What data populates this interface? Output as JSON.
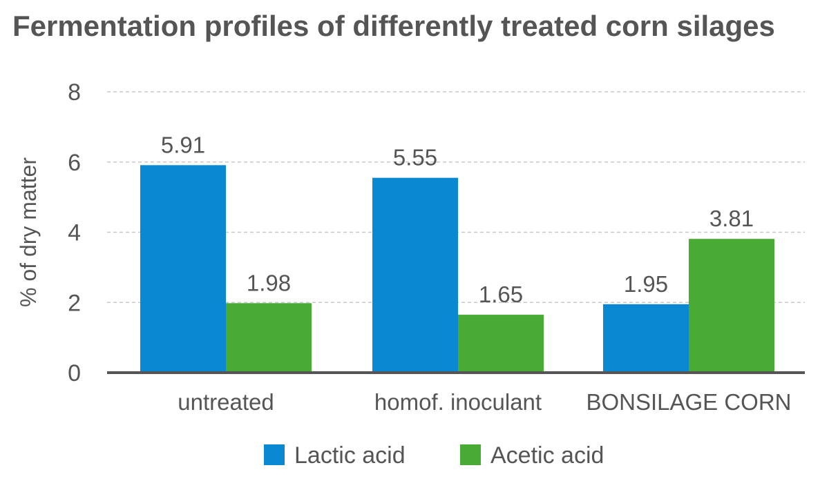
{
  "chart_data": {
    "type": "bar",
    "title": "Fermentation profiles of differently treated corn silages",
    "ylabel": "% of dry matter",
    "xlabel": "",
    "categories": [
      "untreated",
      "homof. inoculant",
      "BONSILAGE CORN"
    ],
    "series": [
      {
        "name": "Lactic acid",
        "values": [
          5.91,
          5.55,
          1.95
        ],
        "color": "#0a88d2",
        "labels": [
          "5.91",
          "5.55",
          "1.95"
        ]
      },
      {
        "name": "Acetic acid",
        "values": [
          1.98,
          1.65,
          3.81
        ],
        "color": "#4aab34",
        "labels": [
          "1.98",
          "1.65",
          "3.81"
        ]
      }
    ],
    "ylim": [
      0,
      8
    ],
    "yticks": [
      0,
      2,
      4,
      6,
      8
    ],
    "grid": true,
    "legend": "bottom-center"
  }
}
